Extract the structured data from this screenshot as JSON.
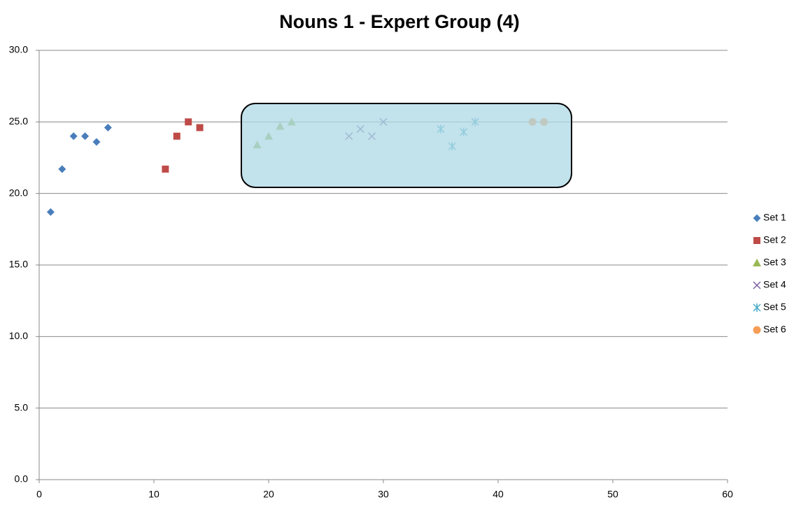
{
  "chart_data": {
    "type": "scatter",
    "title": "Nouns 1 - Expert Group (4)",
    "series": [
      {
        "name": "Set 1",
        "color": "#4a7ebb",
        "marker": "diamond",
        "x": [
          1,
          2,
          3,
          4,
          5,
          6
        ],
        "values": [
          18.7,
          21.7,
          24.0,
          24.0,
          23.6,
          24.6
        ]
      },
      {
        "name": "Set 2",
        "color": "#be4b48",
        "marker": "square",
        "x": [
          11,
          12,
          13,
          14
        ],
        "values": [
          21.7,
          24.0,
          25.0,
          24.6
        ]
      },
      {
        "name": "Set 3",
        "color": "#98b954",
        "marker": "triangle",
        "x": [
          19,
          20,
          21,
          22
        ],
        "values": [
          23.4,
          24.0,
          24.7,
          25.0
        ]
      },
      {
        "name": "Set 4",
        "color": "#7d60a0",
        "marker": "x",
        "x": [
          27,
          28,
          29,
          30
        ],
        "values": [
          24.0,
          24.5,
          24.0,
          25.0
        ]
      },
      {
        "name": "Set 5",
        "color": "#46aac5",
        "marker": "star",
        "x": [
          35,
          36,
          37,
          38
        ],
        "values": [
          24.5,
          23.3,
          24.3,
          25.0
        ]
      },
      {
        "name": "Set 6",
        "color": "#f59d56",
        "marker": "circle",
        "x": [
          43,
          44
        ],
        "values": [
          25.0,
          25.0
        ]
      }
    ],
    "xlim": [
      0,
      60
    ],
    "xticks": [
      0,
      10,
      20,
      30,
      40,
      50,
      60
    ],
    "ylim": [
      0,
      30
    ],
    "yticks": [
      {
        "value": 0,
        "label": "0.0"
      },
      {
        "value": 5,
        "label": "5.0"
      },
      {
        "value": 10,
        "label": "10.0"
      },
      {
        "value": 15,
        "label": "15.0"
      },
      {
        "value": 20,
        "label": "20.0"
      },
      {
        "value": 25,
        "label": "25.0"
      },
      {
        "value": 30,
        "label": "30.0"
      }
    ],
    "grid": true,
    "legend": "right"
  }
}
